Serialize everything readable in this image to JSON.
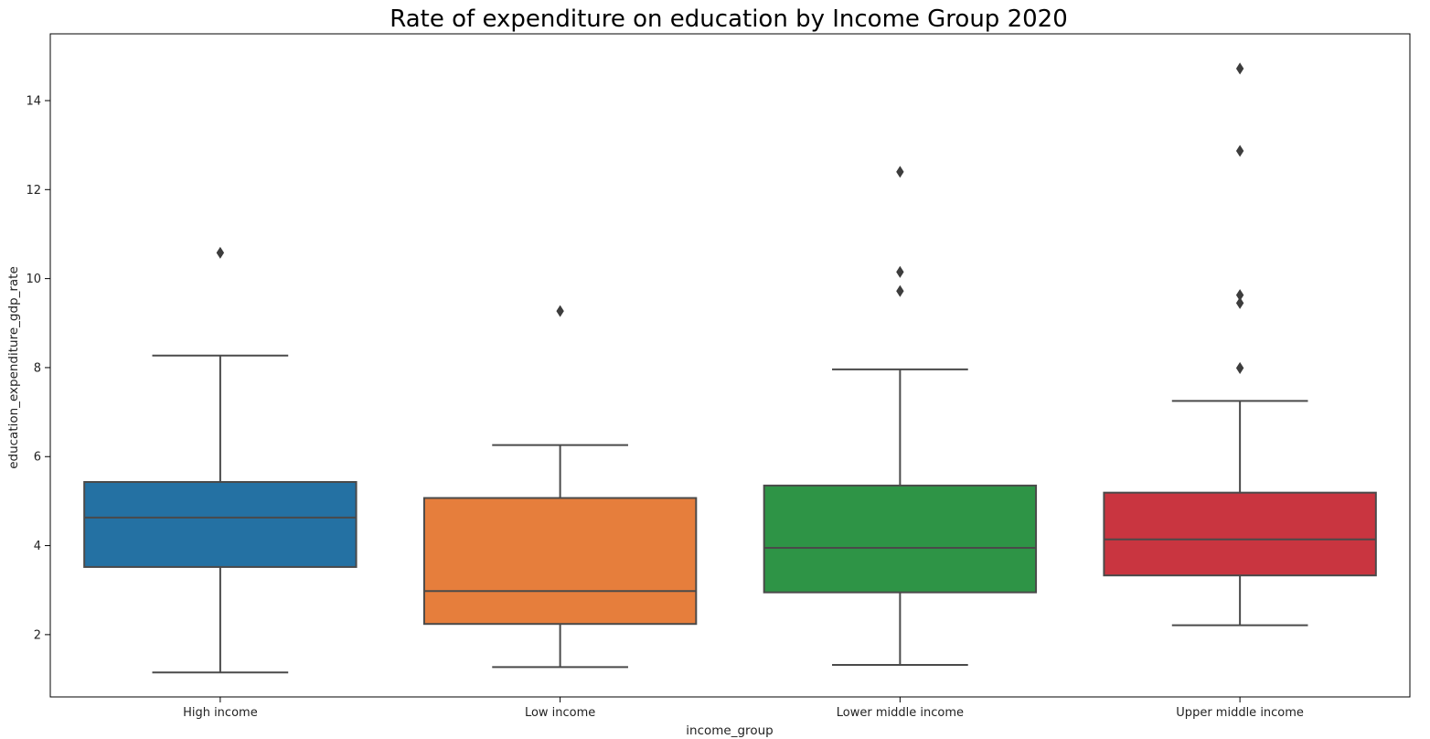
{
  "chart_data": {
    "type": "box",
    "title": "Rate of expenditure on education by Income Group 2020",
    "xlabel": "income_group",
    "ylabel": "education_expenditure_gdp_rate",
    "ylim": [
      0.6,
      15.5
    ],
    "yticks": [
      2,
      4,
      6,
      8,
      10,
      12,
      14
    ],
    "yticks_labels": [
      "2",
      "4",
      "6",
      "8",
      "10",
      "12",
      "14"
    ],
    "grid": false,
    "categories": [
      "High income",
      "Low income",
      "Lower middle income",
      "Upper middle income"
    ],
    "boxes": [
      {
        "category": "High income",
        "whisker_low": 1.15,
        "q1": 3.52,
        "median": 4.63,
        "q3": 5.43,
        "whisker_high": 8.27,
        "outliers": [
          10.58
        ],
        "color": "#2471a3"
      },
      {
        "category": "Low income",
        "whisker_low": 1.27,
        "q1": 2.24,
        "median": 2.98,
        "q3": 5.07,
        "whisker_high": 6.26,
        "outliers": [
          9.27
        ],
        "color": "#e67e3c"
      },
      {
        "category": "Lower middle income",
        "whisker_low": 1.32,
        "q1": 2.95,
        "median": 3.95,
        "q3": 5.35,
        "whisker_high": 7.96,
        "outliers": [
          9.72,
          10.15,
          12.4
        ],
        "color": "#2e9446"
      },
      {
        "category": "Upper middle income",
        "whisker_low": 2.21,
        "q1": 3.33,
        "median": 4.14,
        "q3": 5.19,
        "whisker_high": 7.25,
        "outliers": [
          7.99,
          9.45,
          9.63,
          12.87,
          14.72
        ],
        "color": "#c93540"
      }
    ]
  }
}
